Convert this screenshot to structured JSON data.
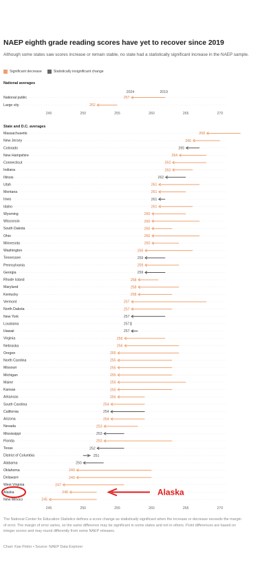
{
  "title": "NAEP eighth grade reading scores have yet to recover since 2019",
  "subtitle": "Although some states saw scores increase or remain stable, no state had a statistically significant increase in the NAEP sample.",
  "legend": [
    {
      "label": "Significant decrease",
      "color": "#f0a070"
    },
    {
      "label": "Statistically insignificant change",
      "color": "#666666"
    }
  ],
  "sections": {
    "national": "National averages",
    "states": "State and D.C. averages"
  },
  "year_labels": {
    "current": "2024",
    "previous": "2019"
  },
  "footer": "The National Center for Education Statistics defines a score change as statistically significant when the increase or decrease exceeds the margin of error. The margin of error varies, so the same difference may be significant in some states and not in others. Point differences are based on integer scores and may round differently from some NAEP releases.",
  "credit": "Chart: Kae Petrin • Source: NAEP Data Explorer",
  "annotation": {
    "label": "Alaska",
    "color": "#e01b1b"
  },
  "colors": {
    "decrease": "#f0a070",
    "decrease_text": "#e07a40",
    "insignificant": "#555555",
    "grid": "#cfcfcf"
  },
  "chart_data": {
    "type": "dot-arrow",
    "xlim": [
      245,
      270
    ],
    "ticks": [
      245,
      250,
      255,
      260,
      265,
      270
    ],
    "national": [
      {
        "name": "National public",
        "score_2024": 257,
        "score_2019": 262,
        "status": "decrease"
      },
      {
        "name": "Large city",
        "score_2024": 252,
        "score_2019": 255,
        "status": "decrease"
      }
    ],
    "states": [
      {
        "name": "Massachusetts",
        "score_2024": 268,
        "score_2019": 273,
        "status": "decrease"
      },
      {
        "name": "New Jersey",
        "score_2024": 266,
        "score_2019": 270,
        "status": "decrease"
      },
      {
        "name": "Colorado",
        "score_2024": 265,
        "score_2019": 267,
        "status": "insignificant"
      },
      {
        "name": "New Hampshire",
        "score_2024": 264,
        "score_2019": 268,
        "status": "decrease"
      },
      {
        "name": "Connecticut",
        "score_2024": 263,
        "score_2019": 268,
        "status": "decrease"
      },
      {
        "name": "Indiana",
        "score_2024": 263,
        "score_2019": 266,
        "status": "decrease"
      },
      {
        "name": "Illinois",
        "score_2024": 262,
        "score_2019": 265,
        "status": "insignificant"
      },
      {
        "name": "Utah",
        "score_2024": 261,
        "score_2019": 267,
        "status": "decrease"
      },
      {
        "name": "Montana",
        "score_2024": 261,
        "score_2019": 265,
        "status": "decrease"
      },
      {
        "name": "Iowa",
        "score_2024": 261,
        "score_2019": 262,
        "status": "insignificant"
      },
      {
        "name": "Idaho",
        "score_2024": 261,
        "score_2019": 266,
        "status": "decrease"
      },
      {
        "name": "Wyoming",
        "score_2024": 260,
        "score_2019": 265,
        "status": "decrease"
      },
      {
        "name": "Wisconsin",
        "score_2024": 260,
        "score_2019": 267,
        "status": "decrease"
      },
      {
        "name": "South Dakota",
        "score_2024": 260,
        "score_2019": 263,
        "status": "decrease"
      },
      {
        "name": "Ohio",
        "score_2024": 260,
        "score_2019": 267,
        "status": "decrease"
      },
      {
        "name": "Minnesota",
        "score_2024": 260,
        "score_2019": 264,
        "status": "decrease"
      },
      {
        "name": "Washington",
        "score_2024": 259,
        "score_2019": 266,
        "status": "decrease"
      },
      {
        "name": "Tennessee",
        "score_2024": 259,
        "score_2019": 262,
        "status": "insignificant"
      },
      {
        "name": "Pennsylvania",
        "score_2024": 259,
        "score_2019": 264,
        "status": "decrease"
      },
      {
        "name": "Georgia",
        "score_2024": 259,
        "score_2019": 262,
        "status": "insignificant"
      },
      {
        "name": "Rhode Island",
        "score_2024": 258,
        "score_2019": 261,
        "status": "decrease"
      },
      {
        "name": "Maryland",
        "score_2024": 258,
        "score_2019": 264,
        "status": "decrease"
      },
      {
        "name": "Kentucky",
        "score_2024": 258,
        "score_2019": 263,
        "status": "decrease"
      },
      {
        "name": "Vermont",
        "score_2024": 257,
        "score_2019": 268,
        "status": "decrease"
      },
      {
        "name": "North Dakota",
        "score_2024": 257,
        "score_2019": 263,
        "status": "decrease"
      },
      {
        "name": "New York",
        "score_2024": 257,
        "score_2019": 262,
        "status": "insignificant"
      },
      {
        "name": "Louisiana",
        "score_2024": 257,
        "score_2019": 257,
        "status": "insignificant"
      },
      {
        "name": "Hawaii",
        "score_2024": 257,
        "score_2019": 258,
        "status": "insignificant"
      },
      {
        "name": "Virginia",
        "score_2024": 256,
        "score_2019": 262,
        "status": "decrease"
      },
      {
        "name": "Nebraska",
        "score_2024": 256,
        "score_2019": 264,
        "status": "decrease"
      },
      {
        "name": "Oregon",
        "score_2024": 255,
        "score_2019": 264,
        "status": "decrease"
      },
      {
        "name": "North Carolina",
        "score_2024": 255,
        "score_2019": 263,
        "status": "decrease"
      },
      {
        "name": "Missouri",
        "score_2024": 255,
        "score_2019": 263,
        "status": "decrease"
      },
      {
        "name": "Michigan",
        "score_2024": 255,
        "score_2019": 263,
        "status": "decrease"
      },
      {
        "name": "Maine",
        "score_2024": 255,
        "score_2019": 265,
        "status": "decrease"
      },
      {
        "name": "Kansas",
        "score_2024": 255,
        "score_2019": 263,
        "status": "decrease"
      },
      {
        "name": "Arkansas",
        "score_2024": 255,
        "score_2019": 259,
        "status": "decrease"
      },
      {
        "name": "South Carolina",
        "score_2024": 254,
        "score_2019": 259,
        "status": "decrease"
      },
      {
        "name": "California",
        "score_2024": 254,
        "score_2019": 259,
        "status": "insignificant"
      },
      {
        "name": "Arizona",
        "score_2024": 254,
        "score_2019": 259,
        "status": "decrease"
      },
      {
        "name": "Nevada",
        "score_2024": 253,
        "score_2019": 258,
        "status": "decrease"
      },
      {
        "name": "Mississippi",
        "score_2024": 253,
        "score_2019": 256,
        "status": "insignificant"
      },
      {
        "name": "Florida",
        "score_2024": 253,
        "score_2019": 263,
        "status": "decrease"
      },
      {
        "name": "Texas",
        "score_2024": 252,
        "score_2019": 256,
        "status": "insignificant"
      },
      {
        "name": "District of Columbia",
        "score_2024": 251,
        "score_2019": 250,
        "status": "insignificant"
      },
      {
        "name": "Alabama",
        "score_2024": 250,
        "score_2019": 253,
        "status": "insignificant"
      },
      {
        "name": "Oklahoma",
        "score_2024": 249,
        "score_2019": 260,
        "status": "decrease"
      },
      {
        "name": "Delaware",
        "score_2024": 249,
        "score_2019": 260,
        "status": "decrease"
      },
      {
        "name": "West Virginia",
        "score_2024": 247,
        "score_2019": 256,
        "status": "decrease"
      },
      {
        "name": "Alaska",
        "score_2024": 248,
        "score_2019": 252,
        "status": "decrease"
      },
      {
        "name": "New Mexico",
        "score_2024": 245,
        "score_2019": 252,
        "status": "decrease"
      }
    ]
  }
}
